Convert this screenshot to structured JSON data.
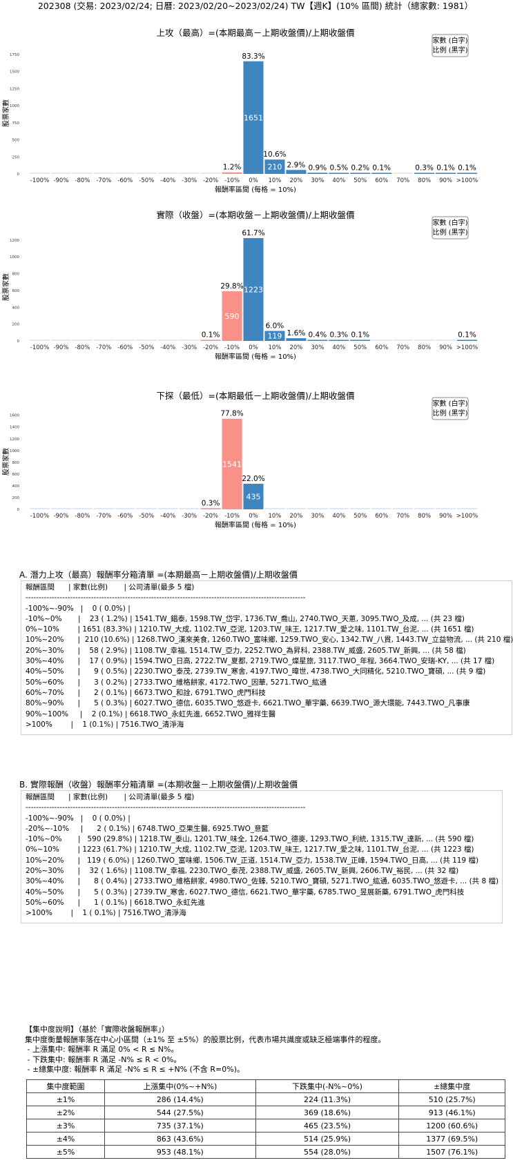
{
  "page_title": "202308 (交易: 2023/02/24; 日曆: 2023/02/20~2023/02/24) TW【週K】(10% 區間) 統計（總家數: 1981）",
  "legend": {
    "line1": "家數 (白字)",
    "line2": "比例 (黑字)"
  },
  "colors": {
    "up": "#3f86c0",
    "down": "#f99188",
    "bg_bar": "#dde9f5"
  },
  "chart_data": [
    {
      "type": "bar",
      "title": "上攻（最高）=(本期最高－上期收盤價)/上期收盤價",
      "xlabel": "報酬率區間 (每格 = 10%)",
      "ylabel": "股票家數",
      "categories": [
        "-100%",
        "-90%",
        "-80%",
        "-70%",
        "-60%",
        "-50%",
        "-40%",
        "-30%",
        "-20%",
        "-10%",
        "0%",
        "10%",
        "20%",
        "30%",
        "40%",
        "50%",
        "60%",
        "70%",
        "80%",
        "90%",
        ">100%"
      ],
      "values": [
        0,
        0,
        0,
        0,
        0,
        0,
        0,
        0,
        0,
        23,
        1651,
        210,
        58,
        17,
        9,
        3,
        2,
        0,
        5,
        2,
        1
      ],
      "percent_labels": [
        "",
        "",
        "",
        "",
        "",
        "",
        "",
        "",
        "",
        "1.2%",
        "83.3%",
        "10.6%",
        "2.9%",
        "0.9%",
        "0.5%",
        "0.2%",
        "0.1%",
        "",
        "0.3%",
        "0.1%",
        "0.1%"
      ],
      "yticks": [
        0,
        250,
        500,
        750,
        1000,
        1250,
        1500,
        1750
      ],
      "ylim": [
        0,
        1780
      ]
    },
    {
      "type": "bar",
      "title": "實際（收盤）=(本期收盤－上期收盤價)/上期收盤價",
      "xlabel": "報酬率區間 (每格 = 10%)",
      "ylabel": "股票家數",
      "categories": [
        "-100%",
        "-90%",
        "-80%",
        "-70%",
        "-60%",
        "-50%",
        "-40%",
        "-30%",
        "-20%",
        "-10%",
        "0%",
        "10%",
        "20%",
        "30%",
        "40%",
        "50%",
        "60%",
        "70%",
        "80%",
        "90%",
        ">100%"
      ],
      "values": [
        0,
        0,
        0,
        0,
        0,
        0,
        0,
        0,
        2,
        590,
        1223,
        119,
        32,
        8,
        5,
        1,
        0,
        0,
        0,
        0,
        1
      ],
      "percent_labels": [
        "",
        "",
        "",
        "",
        "",
        "",
        "",
        "",
        "0.1%",
        "29.8%",
        "61.7%",
        "6.0%",
        "1.6%",
        "0.4%",
        "0.3%",
        "0.1%",
        "",
        "",
        "",
        "",
        "0.1%"
      ],
      "yticks": [
        0,
        200,
        400,
        600,
        800,
        1000,
        1200
      ],
      "ylim": [
        0,
        1280
      ]
    },
    {
      "type": "bar",
      "title": "下探（最低）=(本期最低－上期收盤價)/上期收盤價",
      "xlabel": "報酬率區間 (每格 = 10%)",
      "ylabel": "股票家數",
      "categories": [
        "-100%",
        "-90%",
        "-80%",
        "-70%",
        "-60%",
        "-50%",
        "-40%",
        "-30%",
        "-20%",
        "-10%",
        "0%",
        "10%",
        "20%",
        "30%",
        "40%",
        "50%",
        "60%",
        "70%",
        "80%",
        "90%",
        ">100%"
      ],
      "values": [
        0,
        0,
        0,
        0,
        0,
        0,
        0,
        0,
        5,
        1541,
        435,
        0,
        0,
        0,
        0,
        0,
        0,
        0,
        0,
        0,
        0
      ],
      "percent_labels": [
        "",
        "",
        "",
        "",
        "",
        "",
        "",
        "",
        "0.3%",
        "77.8%",
        "22.0%",
        "",
        "",
        "",
        "",
        "",
        "",
        "",
        "",
        "",
        ""
      ],
      "yticks": [
        0,
        200,
        400,
        600,
        800,
        1000,
        1200,
        1400,
        1600
      ],
      "ylim": [
        0,
        1620
      ]
    }
  ],
  "list_a": {
    "title": "A. 潛力上攻（最高）報酬率分箱清單 =(本期最高－上期收盤價)/上期收盤價",
    "lines": [
      "報酬區間      | 家數(比例)       | 公司清單(最多 5 檔)",
      "-----------------------------------------------------------------------------------------------------------",
      "-100%~-90%   |    0 ( 0.0%) |",
      "-10%~0%       |    23 ( 1.2%) | 1541.TW_錩泰, 1598.TW_岱宇, 1736.TW_喬山, 2740.TWO_天蔥, 3095.TWO_及成, ... (共 23 檔)",
      "0%~10%        | 1651 (83.3%) | 1210.TW_大成, 1102.TW_亞泥, 1203.TW_味王, 1217.TW_愛之味, 1101.TW_台泥, ... (共 1651 檔)",
      "10%~20%      |  210 (10.6%) | 1268.TWO_漢來美食, 1260.TWO_富味鄉, 1259.TWO_安心, 1342.TW_八貫, 1443.TW_立益物流, ... (共 210 檔)",
      "20%~30%      |    58 ( 2.9%) | 1108.TW_幸福, 1514.TW_亞力, 2252.TWO_為昇科, 2388.TW_威盛, 2605.TW_新興, ... (共 58 檔)",
      "30%~40%      |    17 ( 0.9%) | 1594.TWO_日高, 2722.TW_夏都, 2719.TWO_燦星旅, 3117.TWO_年程, 3664.TWO_安瑞-KY, ... (共 17 檔)",
      "40%~50%      |      9 ( 0.5%) | 2230.TWO_泰茂, 2739.TW_寒舍, 4197.TWO_暐世, 4738.TWO_大同精化, 5210.TWO_寶碩, ... (共 9 檔)",
      "50%~60%      |      3 ( 0.2%) | 2733.TWO_維格餅家, 4172.TWO_因華, 5271.TWO_紘通",
      "60%~70%      |      2 ( 0.1%) | 6673.TWO_和詮, 6791.TWO_虎門科技",
      "80%~90%      |      5 ( 0.3%) | 6027.TWO_德信, 6035.TWO_悠遊卡, 6621.TWO_華宇藥, 6639.TWO_源大環能, 7443.TWO_凡事康",
      "90%~100%     |    2 (0.1%) | 6618.TWO_永虹先進, 6652.TWO_雅祥生醫",
      ">100%        |    1 (0.1%) | 7516.TWO_清淨海"
    ]
  },
  "list_b": {
    "title": "B. 實際報酬（收盤）報酬率分箱清單 =(本期收盤－上期收盤價)/上期收盤價",
    "lines": [
      "報酬區間      | 家數(比例)       | 公司清單(最多 5 檔)",
      "-----------------------------------------------------------------------------------------------------------",
      "-100%~-90%   |    0 ( 0.0%) |",
      "-20%~-10%     |      2 ( 0.1%) | 6748.TWO_亞果生醫, 6925.TWO_意藍",
      "-10%~0%       |   590 (29.8%) | 1218.TW_泰山, 1201.TW_味全, 1264.TWO_德麥, 1293.TWO_利統, 1315.TW_達新, ... (共 590 檔)",
      "0%~10%        | 1223 (61.7%) | 1210.TW_大成, 1102.TW_亞泥, 1203.TW_味王, 1217.TW_愛之味, 1101.TW_台泥, ... (共 1223 檔)",
      "10%~20%      |   119 ( 6.0%) | 1260.TWO_富味鄉, 1506.TW_正道, 1514.TW_亞力, 1538.TW_正峰, 1594.TWO_日高, ... (共 119 檔)",
      "20%~30%      |    32 ( 1.6%) | 1108.TW_幸福, 2230.TWO_泰茂, 2388.TW_威盛, 2605.TW_新興, 2606.TW_裕民, ... (共 32 檔)",
      "30%~40%      |      8 ( 0.4%) | 2733.TWO_維格餅家, 4980.TWO_佐臻, 5210.TWO_寶碩, 5271.TWO_紘通, 6035.TWO_悠遊卡, ... (共 8 檔)",
      "40%~50%      |      5 ( 0.3%) | 2739.TW_寒舍, 6027.TWO_德信, 6621.TWO_華宇藥, 6785.TWO_昱展新藥, 6791.TWO_虎門科技",
      "50%~60%      |      1 ( 0.1%) | 6618.TWO_永虹先進",
      ">100%        |    1 ( 0.1%) | 7516.TWO_清淨海"
    ]
  },
  "notes": {
    "lines": [
      "【集中度說明】（基於「實際收盤報酬率」）",
      "集中度衡量報酬率落在中心小區間（±1% 至 ±5%）的股票比例，代表市場共識度或缺乏極端事件的程度。",
      " - 上漲集中: 報酬率 R 滿足 0% < R ≤ N%。",
      " - 下跌集中: 報酬率 R 滿足 -N% ≤ R < 0%。",
      " - ±總集中度: 報酬率 R 滿足 -N% ≤ R ≤ +N% (不含 R=0%)。"
    ]
  },
  "concentration_table": {
    "headers": [
      "集中度範圍",
      "上漲集中(0%~+N%)",
      "下跌集中(-N%~0%)",
      "±總集中度"
    ],
    "rows": [
      [
        "±1%",
        "286 (14.4%)",
        "224 (11.3%)",
        "510 (25.7%)"
      ],
      [
        "±2%",
        "544 (27.5%)",
        "369 (18.6%)",
        "913 (46.1%)"
      ],
      [
        "±3%",
        "735 (37.1%)",
        "465 (23.5%)",
        "1200 (60.6%)"
      ],
      [
        "±4%",
        "863 (43.6%)",
        "514 (25.9%)",
        "1377 (69.5%)"
      ],
      [
        "±5%",
        "953 (48.1%)",
        "554 (28.0%)",
        "1507 (76.1%)"
      ]
    ]
  }
}
